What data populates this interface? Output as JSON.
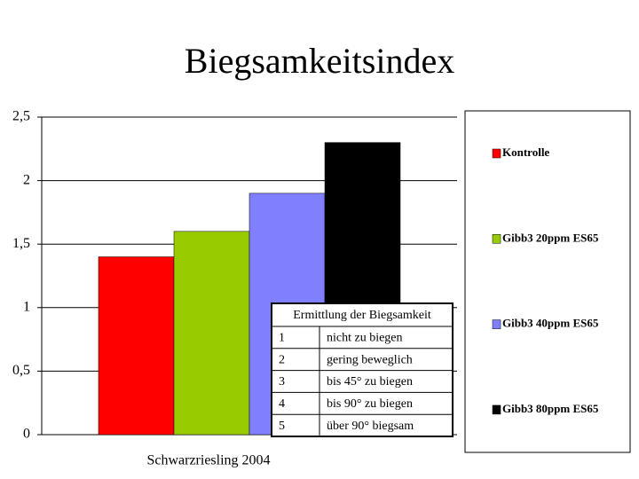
{
  "chart_data": {
    "type": "bar",
    "title": "Biegsamkeitsindex",
    "categories": [
      "Schwarzriesling 2004"
    ],
    "series": [
      {
        "name": "Kontrolle",
        "color": "#ff0000",
        "values": [
          1.4
        ]
      },
      {
        "name": "Gibb3 20ppm ES65",
        "color": "#99cc00",
        "values": [
          1.6
        ]
      },
      {
        "name": "Gibb3 40ppm ES65",
        "color": "#8080ff",
        "values": [
          1.9
        ]
      },
      {
        "name": "Gibb3 80ppm ES65",
        "color": "#000000",
        "values": [
          2.3
        ]
      }
    ],
    "ylim": [
      0,
      2.5
    ],
    "yticks": [
      0,
      {
        "value": 0.5,
        "label": "0,5"
      },
      1,
      {
        "value": 1.5,
        "label": "1,5"
      },
      2,
      {
        "value": 2.5,
        "label": "2,5"
      }
    ],
    "grid": true,
    "legend": "right",
    "table": {
      "title": "Ermittlung der Biegsamkeit",
      "rows": [
        [
          "1",
          "nicht zu biegen"
        ],
        [
          "2",
          "gering beweglich"
        ],
        [
          "3",
          "bis 45° zu biegen"
        ],
        [
          "4",
          "bis 90° zu biegen"
        ],
        [
          "5",
          "über 90° biegsam"
        ]
      ]
    }
  }
}
